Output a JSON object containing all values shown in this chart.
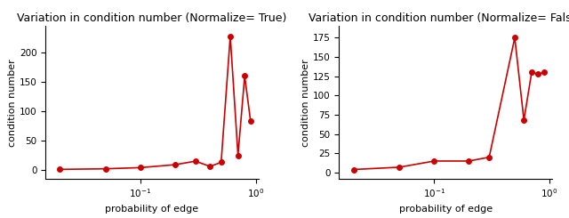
{
  "left": {
    "title": "Variation in condition number (Normalize= True)",
    "x": [
      0.02,
      0.05,
      0.1,
      0.2,
      0.3,
      0.4,
      0.5,
      0.6,
      0.7,
      0.8,
      0.9
    ],
    "y": [
      1.0,
      2.0,
      4.0,
      9.0,
      15.0,
      6.0,
      13.0,
      228.0,
      25.0,
      160.0,
      83.0
    ],
    "yticks": [
      0,
      50,
      100,
      150,
      200
    ],
    "ylim": [
      -15,
      245
    ]
  },
  "right": {
    "title": "Variation in condition number (Normalize= False)",
    "x": [
      0.02,
      0.05,
      0.1,
      0.2,
      0.3,
      0.5,
      0.6,
      0.7,
      0.8,
      0.9
    ],
    "y": [
      4.0,
      7.0,
      15.0,
      15.0,
      20.0,
      175.0,
      68.0,
      130.0,
      128.0,
      130.0
    ],
    "yticks": [
      0,
      25,
      50,
      75,
      100,
      125,
      150,
      175
    ],
    "ylim": [
      -8,
      190
    ]
  },
  "xlabel": "probability of edge",
  "ylabel": "condition number",
  "color": "#cc0000",
  "marker": "o",
  "markersize": 4,
  "linewidth": 1.2,
  "title_fontsize": 9,
  "label_fontsize": 8,
  "tick_fontsize": 7.5,
  "xlim": [
    0.015,
    1.05
  ],
  "xticks": [
    0.1,
    1.0
  ]
}
